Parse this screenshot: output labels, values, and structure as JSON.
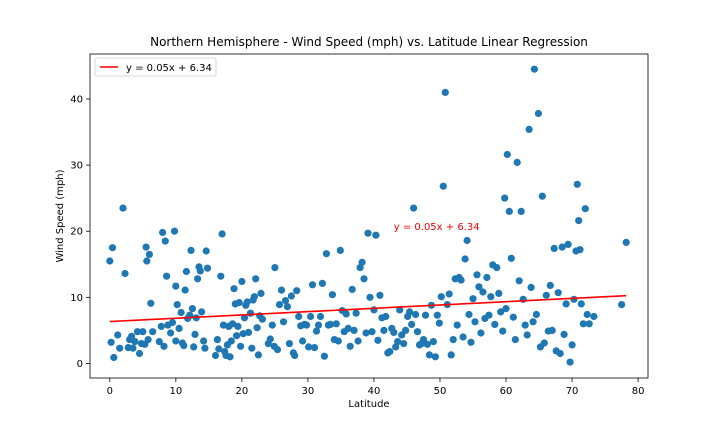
{
  "chart_data": {
    "type": "scatter",
    "title": "Northern Hemisphere - Wind Speed (mph) vs. Latitude Linear Regression",
    "xlabel": "Latitude",
    "ylabel": "Wind Speed (mph)",
    "xlim": [
      -3,
      81.5
    ],
    "ylim": [
      -2.2,
      46.8
    ],
    "xticks": [
      0,
      10,
      20,
      30,
      40,
      50,
      60,
      70,
      80
    ],
    "yticks": [
      0,
      10,
      20,
      30,
      40
    ],
    "grid": false,
    "legend_location": "upper-left",
    "point_color": "#1f77b4",
    "line_color": "#ff0000",
    "regression": {
      "label": "y = 0.05x + 6.34",
      "slope": 0.05,
      "intercept": 6.34,
      "x_range": [
        0.0,
        78.2
      ]
    },
    "annotation": {
      "text": "y = 0.05x + 6.34",
      "x": 43,
      "y": 20.2,
      "color": "#ff0000"
    },
    "points": [
      [
        0,
        15.5
      ],
      [
        0.2,
        3.2
      ],
      [
        0.4,
        17.5
      ],
      [
        0.6,
        0.9
      ],
      [
        1.2,
        4.3
      ],
      [
        1.5,
        2.3
      ],
      [
        2,
        23.5
      ],
      [
        2.3,
        13.6
      ],
      [
        2.8,
        2.4
      ],
      [
        3,
        3.6
      ],
      [
        3.3,
        4.1
      ],
      [
        3.5,
        2.3
      ],
      [
        3.8,
        3.3
      ],
      [
        4.2,
        4.8
      ],
      [
        4.5,
        1.5
      ],
      [
        4.8,
        3.0
      ],
      [
        5,
        4.8
      ],
      [
        5.3,
        2.9
      ],
      [
        5.5,
        17.6
      ],
      [
        5.6,
        15.5
      ],
      [
        5.8,
        3.6
      ],
      [
        6,
        16.5
      ],
      [
        6.2,
        9.1
      ],
      [
        6.5,
        4.8
      ],
      [
        7.5,
        3.3
      ],
      [
        7.8,
        5.6
      ],
      [
        8,
        19.8
      ],
      [
        8.2,
        2.6
      ],
      [
        8.4,
        18.5
      ],
      [
        8.6,
        13.2
      ],
      [
        8.8,
        5.8
      ],
      [
        9.2,
        4.6
      ],
      [
        9.5,
        6.2
      ],
      [
        9.8,
        20.0
      ],
      [
        10,
        3.4
      ],
      [
        10,
        11.7
      ],
      [
        10.2,
        8.9
      ],
      [
        10.5,
        5.3
      ],
      [
        10.8,
        7.7
      ],
      [
        11,
        3.1
      ],
      [
        11.2,
        2.7
      ],
      [
        11.4,
        11.1
      ],
      [
        11.6,
        13.9
      ],
      [
        11.8,
        6.8
      ],
      [
        12.1,
        7.3
      ],
      [
        12.3,
        17.1
      ],
      [
        12.5,
        8.3
      ],
      [
        12.7,
        2.5
      ],
      [
        12.9,
        4.4
      ],
      [
        13.1,
        6.9
      ],
      [
        13.3,
        12.8
      ],
      [
        13.5,
        14.6
      ],
      [
        13.7,
        14.0
      ],
      [
        13.9,
        7.8
      ],
      [
        14.2,
        3.4
      ],
      [
        14.4,
        2.3
      ],
      [
        14.6,
        17.0
      ],
      [
        14.8,
        14.4
      ],
      [
        16,
        1.2
      ],
      [
        16.3,
        3.6
      ],
      [
        16.5,
        2.2
      ],
      [
        16.8,
        13.2
      ],
      [
        17,
        19.6
      ],
      [
        17.2,
        5.8
      ],
      [
        17.4,
        1.8
      ],
      [
        17.6,
        1.2
      ],
      [
        17.8,
        2.8
      ],
      [
        18,
        5.6
      ],
      [
        18.2,
        1.0
      ],
      [
        18.4,
        3.4
      ],
      [
        18.6,
        6.0
      ],
      [
        18.8,
        11.3
      ],
      [
        19,
        9.0
      ],
      [
        19.2,
        4.2
      ],
      [
        19.4,
        5.6
      ],
      [
        19.6,
        9.2
      ],
      [
        19.8,
        2.6
      ],
      [
        20,
        12.4
      ],
      [
        20.2,
        4.5
      ],
      [
        20.4,
        6.9
      ],
      [
        20.6,
        8.8
      ],
      [
        20.8,
        9.3
      ],
      [
        21,
        4.7
      ],
      [
        21.3,
        7.6
      ],
      [
        21.5,
        2.3
      ],
      [
        21.7,
        9.6
      ],
      [
        21.9,
        10.1
      ],
      [
        22.1,
        12.8
      ],
      [
        22.3,
        5.4
      ],
      [
        22.5,
        1.3
      ],
      [
        22.7,
        7.2
      ],
      [
        22.9,
        10.6
      ],
      [
        23.1,
        6.7
      ],
      [
        24,
        3.0
      ],
      [
        24.3,
        3.7
      ],
      [
        24.6,
        5.8
      ],
      [
        24.9,
        2.6
      ],
      [
        25,
        14.5
      ],
      [
        25.4,
        2.1
      ],
      [
        25.7,
        8.9
      ],
      [
        26,
        11.1
      ],
      [
        26.3,
        6.3
      ],
      [
        26.6,
        9.5
      ],
      [
        26.9,
        8.6
      ],
      [
        27.2,
        3.0
      ],
      [
        27.5,
        10.2
      ],
      [
        27.8,
        1.6
      ],
      [
        28,
        1.2
      ],
      [
        28.3,
        11.0
      ],
      [
        28.6,
        7.1
      ],
      [
        28.9,
        5.7
      ],
      [
        29.2,
        3.4
      ],
      [
        29.5,
        5.9
      ],
      [
        29.8,
        5.8
      ],
      [
        30.1,
        2.5
      ],
      [
        30.4,
        7.1
      ],
      [
        30.7,
        11.9
      ],
      [
        31,
        2.4
      ],
      [
        31.3,
        4.9
      ],
      [
        31.6,
        5.8
      ],
      [
        31.9,
        7.1
      ],
      [
        32.2,
        12.1
      ],
      [
        32.5,
        1.1
      ],
      [
        32.8,
        16.6
      ],
      [
        33.1,
        5.8
      ],
      [
        33.4,
        5.9
      ],
      [
        33.7,
        10.4
      ],
      [
        34,
        3.6
      ],
      [
        34.3,
        6.0
      ],
      [
        34.6,
        3.4
      ],
      [
        34.9,
        17.1
      ],
      [
        35.2,
        8.0
      ],
      [
        35.5,
        4.8
      ],
      [
        35.8,
        7.5
      ],
      [
        36.1,
        5.3
      ],
      [
        36.4,
        2.6
      ],
      [
        36.7,
        11.2
      ],
      [
        37,
        5.0
      ],
      [
        37.3,
        7.6
      ],
      [
        37.6,
        3.4
      ],
      [
        37.9,
        14.5
      ],
      [
        38.2,
        15.3
      ],
      [
        38.5,
        12.8
      ],
      [
        38.8,
        4.6
      ],
      [
        39.1,
        19.7
      ],
      [
        39.4,
        10.0
      ],
      [
        39.7,
        4.8
      ],
      [
        40,
        8.1
      ],
      [
        40.3,
        19.4
      ],
      [
        40.6,
        3.5
      ],
      [
        40.9,
        10.3
      ],
      [
        41.2,
        6.9
      ],
      [
        41.5,
        5.0
      ],
      [
        41.8,
        7.1
      ],
      [
        42.1,
        1.6
      ],
      [
        42.4,
        1.8
      ],
      [
        42.7,
        5.3
      ],
      [
        43,
        4.7
      ],
      [
        43.3,
        2.5
      ],
      [
        43.6,
        3.3
      ],
      [
        43.9,
        8.1
      ],
      [
        44.2,
        4.3
      ],
      [
        44.5,
        3.0
      ],
      [
        44.8,
        5.0
      ],
      [
        45.1,
        7.1
      ],
      [
        45.4,
        7.8
      ],
      [
        45.7,
        5.9
      ],
      [
        46,
        23.5
      ],
      [
        46.3,
        7.4
      ],
      [
        46.6,
        4.8
      ],
      [
        46.9,
        2.8
      ],
      [
        47.2,
        3.0
      ],
      [
        47.5,
        3.6
      ],
      [
        47.8,
        7.3
      ],
      [
        48.1,
        2.9
      ],
      [
        48.4,
        1.3
      ],
      [
        48.7,
        8.8
      ],
      [
        49,
        3.3
      ],
      [
        49.3,
        1.0
      ],
      [
        49.6,
        7.3
      ],
      [
        49.9,
        6.1
      ],
      [
        50.2,
        10.1
      ],
      [
        50.5,
        26.8
      ],
      [
        50.8,
        41.0
      ],
      [
        51.1,
        8.9
      ],
      [
        51.4,
        10.5
      ],
      [
        51.7,
        1.3
      ],
      [
        52,
        3.6
      ],
      [
        52.3,
        12.8
      ],
      [
        52.6,
        5.8
      ],
      [
        52.9,
        13.0
      ],
      [
        53.2,
        12.6
      ],
      [
        53.5,
        4.0
      ],
      [
        53.8,
        15.8
      ],
      [
        54.1,
        18.6
      ],
      [
        54.4,
        7.4
      ],
      [
        54.7,
        3.2
      ],
      [
        55,
        9.8
      ],
      [
        55.3,
        6.3
      ],
      [
        55.6,
        13.4
      ],
      [
        55.9,
        11.6
      ],
      [
        56.2,
        4.6
      ],
      [
        56.5,
        10.8
      ],
      [
        56.8,
        6.8
      ],
      [
        57.1,
        13.0
      ],
      [
        57.4,
        7.3
      ],
      [
        57.7,
        10.1
      ],
      [
        58,
        14.9
      ],
      [
        58.3,
        5.9
      ],
      [
        58.6,
        14.5
      ],
      [
        58.9,
        10.6
      ],
      [
        59.2,
        7.8
      ],
      [
        59.5,
        4.9
      ],
      [
        59.8,
        25.0
      ],
      [
        60,
        8.3
      ],
      [
        60.2,
        31.6
      ],
      [
        60.5,
        23.0
      ],
      [
        60.8,
        15.9
      ],
      [
        61.1,
        7.0
      ],
      [
        61.4,
        3.6
      ],
      [
        61.7,
        30.4
      ],
      [
        62,
        12.5
      ],
      [
        62.3,
        23.0
      ],
      [
        62.6,
        9.7
      ],
      [
        62.9,
        5.8
      ],
      [
        63.2,
        4.3
      ],
      [
        63.5,
        35.4
      ],
      [
        63.8,
        11.5
      ],
      [
        64.1,
        6.3
      ],
      [
        64.3,
        44.5
      ],
      [
        64.6,
        7.4
      ],
      [
        64.9,
        37.8
      ],
      [
        65.2,
        2.5
      ],
      [
        65.5,
        25.3
      ],
      [
        65.8,
        3.1
      ],
      [
        66.1,
        10.3
      ],
      [
        66.4,
        4.9
      ],
      [
        66.7,
        11.8
      ],
      [
        67,
        5.0
      ],
      [
        67.3,
        17.4
      ],
      [
        67.6,
        1.9
      ],
      [
        67.9,
        10.7
      ],
      [
        68.2,
        1.5
      ],
      [
        68.5,
        17.6
      ],
      [
        68.8,
        4.4
      ],
      [
        69.1,
        9.0
      ],
      [
        69.4,
        18.0
      ],
      [
        69.7,
        0.2
      ],
      [
        70,
        2.8
      ],
      [
        70.3,
        9.7
      ],
      [
        70.6,
        17.0
      ],
      [
        70.8,
        27.1
      ],
      [
        71,
        21.6
      ],
      [
        71.2,
        17.2
      ],
      [
        71.4,
        9.0
      ],
      [
        71.7,
        6.0
      ],
      [
        72,
        23.4
      ],
      [
        72.3,
        7.4
      ],
      [
        72.6,
        6.0
      ],
      [
        73.3,
        7.1
      ],
      [
        77.5,
        8.9
      ],
      [
        78.2,
        18.3
      ]
    ]
  }
}
